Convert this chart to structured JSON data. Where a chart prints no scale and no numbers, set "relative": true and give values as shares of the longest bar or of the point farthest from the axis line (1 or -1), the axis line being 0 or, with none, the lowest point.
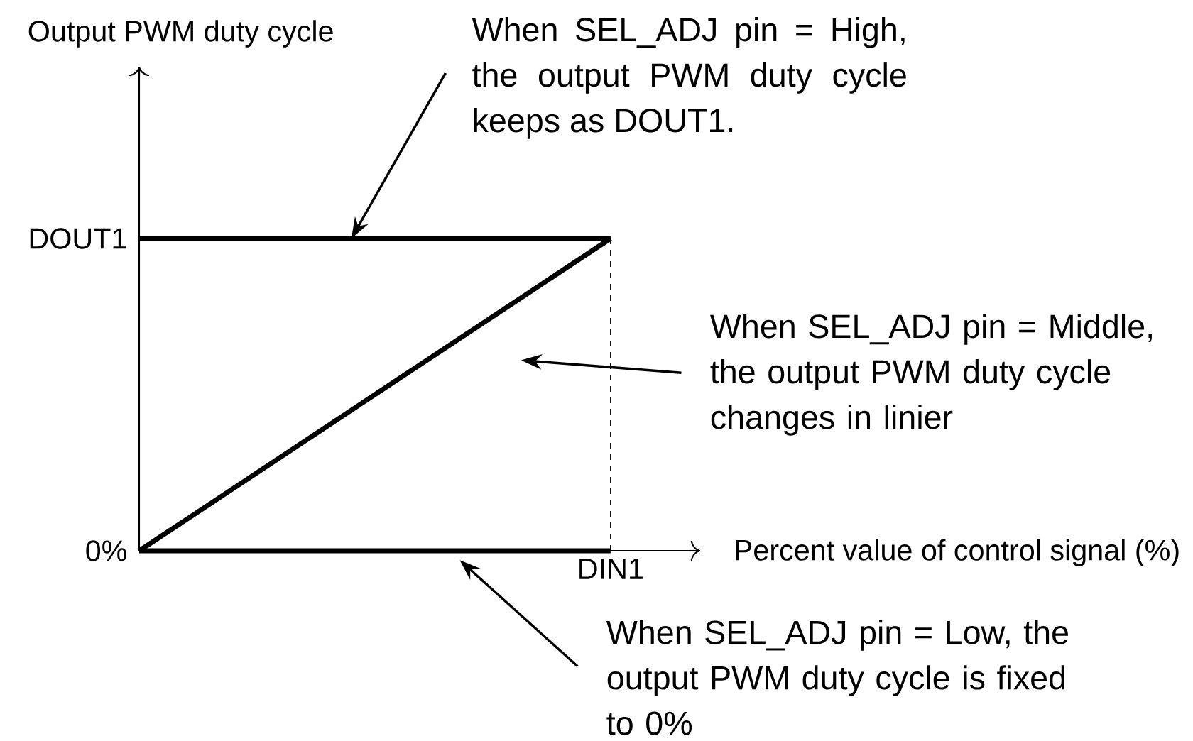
{
  "chart_data": {
    "type": "line",
    "xlabel": "Percent value of control signal (%)",
    "relative": true,
    "categories": [
      null,
      null
    ],
    "series": [
      {
        "color": "#000000",
        "values": [
          1,
          1
        ]
      },
      {
        "color": "#000000",
        "values": [
          0,
          1
        ]
      },
      {
        "color": "#000000",
        "values": [
          0,
          0
        ]
      }
    ],
    "annotations": [
      "When SEL_ADJ pin = High, the output PWM duty cycle keeps as DOUT1.",
      "When SEL_ADJ pin = Middle, the output PWM duty cycle changes in linier",
      "When SEL_ADJ pin = Low, the output PWM duty cycle is fixed to 0%",
      "DOUT1",
      "0%",
      "DIN1",
      "Output PWM duty cycle"
    ],
    "marker": "none",
    "line_style": "solid"
  }
}
